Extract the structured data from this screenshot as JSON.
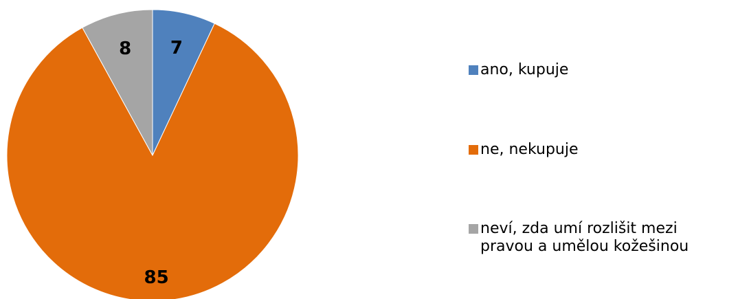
{
  "chart_data": {
    "type": "pie",
    "title": "",
    "start_angle_deg": 0,
    "direction": "clockwise",
    "legend_position": "right",
    "slices": [
      {
        "label": "ano, kupuje",
        "value": 7,
        "display": "7",
        "color": "#4F81BD"
      },
      {
        "label": "ne, nekupuje",
        "value": 85,
        "display": "85",
        "color": "#E36C0A"
      },
      {
        "label": "neví, zda umí rozlišit mezi\npravou a umělou kožešinou",
        "value": 8,
        "display": "8",
        "color": "#A5A5A5"
      }
    ]
  }
}
